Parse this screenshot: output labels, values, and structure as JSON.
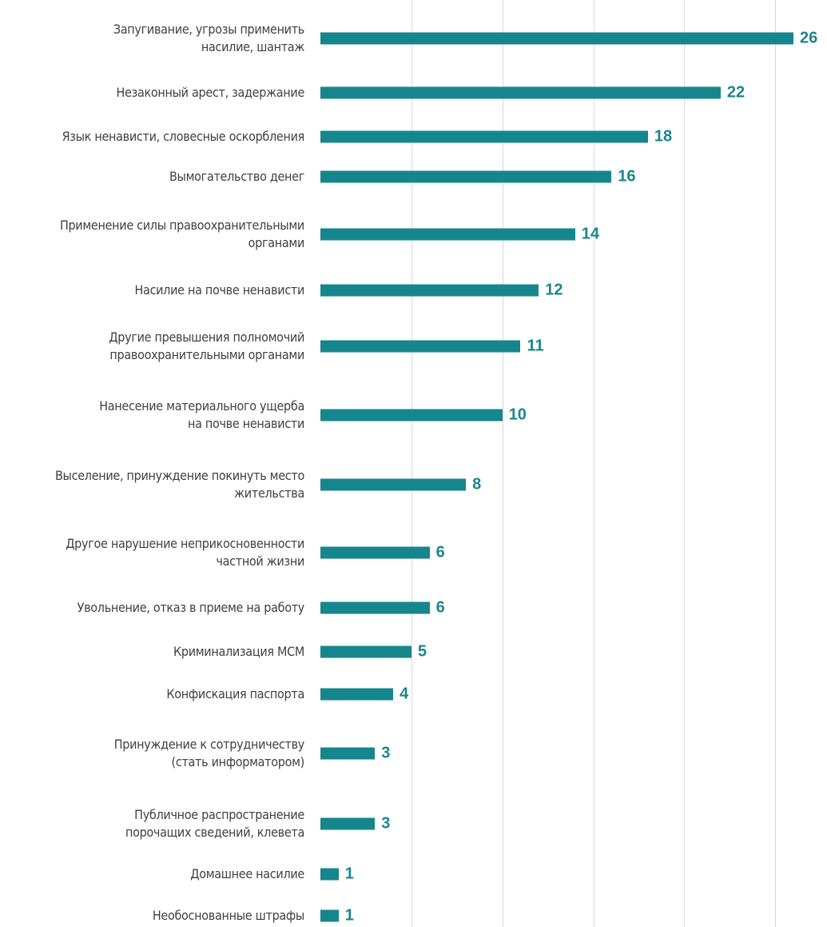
{
  "chart_data": {
    "type": "barh",
    "categories": [
      "Запугивание, угрозы применить\nнасилие, шантаж",
      "Незаконный арест, задержание",
      "Язык ненависти, словесные оскорбления",
      "Вымогательство денег",
      "Применение силы правоохранительными\nорганами",
      "Насилие на почве ненависти",
      "Другие превышения полномочий\nправоохранительными органами",
      "Нанесение материального ущерба\nна почве ненависти",
      "Выселение, принуждение покинуть место\nжительства",
      "Другое нарушение неприкосновенности\nчастной жизни",
      "Увольнение, отказ в приеме на работу",
      "Криминализация МСМ",
      "Конфискация паспорта",
      "Принуждение к сотрудничеству\n(стать информатором)",
      "Публичное распространение\nпорочащих сведений, клевета",
      "Домашнее насилие",
      "Необоснованные штрафы"
    ],
    "values": [
      26,
      22,
      18,
      16,
      14,
      12,
      11,
      10,
      8,
      6,
      6,
      5,
      4,
      3,
      3,
      1,
      1
    ],
    "color": "#16868d",
    "xlim": [
      0,
      26
    ],
    "xticks": [
      5,
      10,
      15,
      20,
      25
    ],
    "grid": true
  }
}
